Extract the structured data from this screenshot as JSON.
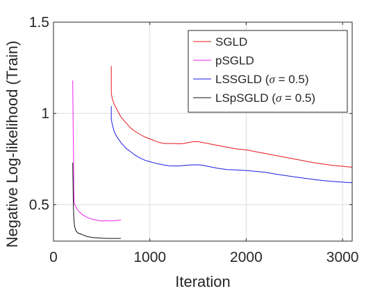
{
  "chart_data": {
    "type": "line",
    "title": "",
    "xlabel": "Iteration",
    "ylabel": "Negative Log-likelihood (Train)",
    "xlim": [
      0,
      3100
    ],
    "ylim": [
      0.3,
      1.5
    ],
    "xticks": [
      0,
      1000,
      2000,
      3000
    ],
    "xtick_labels": [
      "0",
      "1000",
      "2000",
      "3000"
    ],
    "yticks": [
      0.5,
      1,
      1.5
    ],
    "ytick_labels": [
      "0.5",
      "1",
      "1.5"
    ],
    "grid": true,
    "legend_position": "top-right",
    "series": [
      {
        "name": "SGLD",
        "color": "#e8141c",
        "x": [
          600,
          600,
          610,
          630,
          660,
          700,
          750,
          800,
          850,
          900,
          950,
          1000,
          1050,
          1100,
          1150,
          1200,
          1250,
          1300,
          1350,
          1400,
          1450,
          1500,
          1550,
          1600,
          1700,
          1800,
          1900,
          2000,
          2100,
          2200,
          2300,
          2400,
          2500,
          2600,
          2700,
          2800,
          2900,
          3000,
          3100
        ],
        "y": [
          1.26,
          1.11,
          1.08,
          1.05,
          1.02,
          0.98,
          0.95,
          0.92,
          0.9,
          0.885,
          0.87,
          0.86,
          0.85,
          0.84,
          0.835,
          0.835,
          0.835,
          0.833,
          0.835,
          0.84,
          0.845,
          0.845,
          0.84,
          0.835,
          0.825,
          0.815,
          0.805,
          0.8,
          0.79,
          0.78,
          0.77,
          0.76,
          0.75,
          0.74,
          0.73,
          0.722,
          0.715,
          0.71,
          0.705
        ]
      },
      {
        "name": "pSGLD",
        "color": "#ee1fee",
        "x": [
          200,
          205,
          208,
          210,
          215,
          220,
          240,
          260,
          300,
          350,
          400,
          450,
          500,
          550,
          600,
          650,
          700
        ],
        "y": [
          1.18,
          0.9,
          0.75,
          0.6,
          0.52,
          0.5,
          0.48,
          0.465,
          0.445,
          0.43,
          0.42,
          0.415,
          0.41,
          0.412,
          0.41,
          0.413,
          0.415
        ]
      },
      {
        "name": "LSSGLD (σ = 0.5)",
        "color": "#1a1ae0",
        "x": [
          600,
          600,
          610,
          630,
          660,
          700,
          750,
          800,
          850,
          900,
          950,
          1000,
          1050,
          1100,
          1150,
          1200,
          1300,
          1400,
          1500,
          1550,
          1600,
          1700,
          1800,
          1900,
          2000,
          2100,
          2200,
          2300,
          2400,
          2500,
          2600,
          2700,
          2800,
          2900,
          3000,
          3100
        ],
        "y": [
          1.04,
          0.97,
          0.94,
          0.9,
          0.87,
          0.84,
          0.81,
          0.79,
          0.77,
          0.755,
          0.743,
          0.735,
          0.728,
          0.722,
          0.717,
          0.713,
          0.712,
          0.717,
          0.718,
          0.716,
          0.71,
          0.7,
          0.692,
          0.69,
          0.687,
          0.682,
          0.677,
          0.668,
          0.66,
          0.652,
          0.645,
          0.638,
          0.632,
          0.627,
          0.623,
          0.62
        ]
      },
      {
        "name": "LSpSGLD (σ = 0.5)",
        "color": "#0d0d0d",
        "x": [
          200,
          203,
          206,
          210,
          215,
          220,
          230,
          250,
          280,
          300,
          350,
          400,
          450,
          500,
          550,
          600,
          650,
          700
        ],
        "y": [
          0.73,
          0.6,
          0.5,
          0.44,
          0.4,
          0.38,
          0.36,
          0.345,
          0.34,
          0.335,
          0.325,
          0.32,
          0.318,
          0.316,
          0.315,
          0.315,
          0.315,
          0.315
        ]
      }
    ]
  }
}
